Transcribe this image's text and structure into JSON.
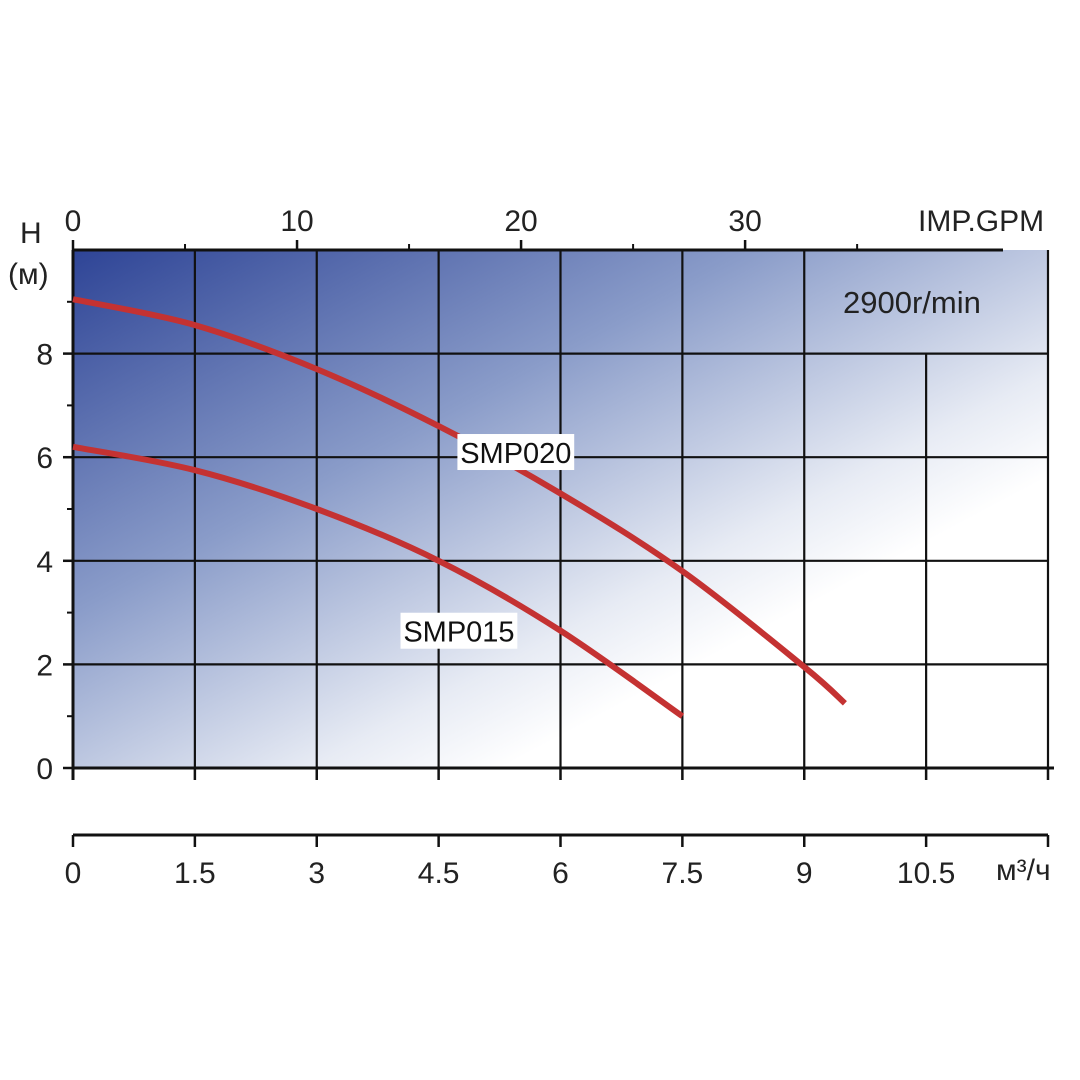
{
  "chart_data": {
    "type": "line",
    "colors": {
      "curve": "#c43232",
      "grid": "#111111",
      "background_start": "#2e4496",
      "background_end": "#ffffff",
      "label_box": "#ffffff"
    },
    "ylabel": "H",
    "ylabel_unit": "(м)",
    "xlabel": "м³/ч",
    "x_top_label": "IMP.GPM",
    "annotation": "2900r/min",
    "xlim": [
      0,
      12
    ],
    "ylim": [
      0,
      10
    ],
    "x_ticks": [
      0,
      1.5,
      3,
      4.5,
      6,
      7.5,
      9,
      10.5
    ],
    "x_tick_labels": [
      "0",
      "1.5",
      "3",
      "4.5",
      "6",
      "7.5",
      "9",
      "10.5"
    ],
    "y_ticks": [
      0,
      2,
      4,
      6,
      8
    ],
    "y_tick_labels": [
      "0",
      "2",
      "4",
      "6",
      "8"
    ],
    "x_top_ticks": [
      0,
      10,
      20,
      30
    ],
    "x_top_tick_labels": [
      "0",
      "10",
      "20",
      "30"
    ],
    "series": [
      {
        "name": "SMP020",
        "label_at": [
          5.45,
          6.1
        ],
        "points": [
          [
            0,
            9.05
          ],
          [
            1.5,
            8.55
          ],
          [
            3,
            7.7
          ],
          [
            4.5,
            6.6
          ],
          [
            6,
            5.3
          ],
          [
            7.5,
            3.8
          ],
          [
            9,
            1.95
          ],
          [
            9.5,
            1.25
          ]
        ]
      },
      {
        "name": "SMP015",
        "label_at": [
          4.75,
          2.65
        ],
        "points": [
          [
            0,
            6.2
          ],
          [
            1.5,
            5.75
          ],
          [
            3,
            5.0
          ],
          [
            4.5,
            4.0
          ],
          [
            6,
            2.65
          ],
          [
            7.5,
            1.0
          ]
        ]
      }
    ]
  }
}
